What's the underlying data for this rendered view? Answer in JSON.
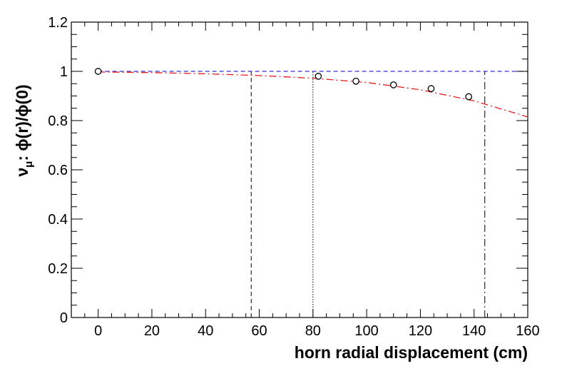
{
  "chart_data": {
    "type": "scatter",
    "xlabel": "horn radial displacement (cm)",
    "ylabel": "ν_μ: ϕ(r)/ϕ(0)",
    "ylabel_parts": {
      "nu": "ν",
      "mu": "μ",
      "ratio": ": ϕ(r)/ϕ(0)"
    },
    "xlim": [
      -10,
      160
    ],
    "ylim": [
      0,
      1.2
    ],
    "xticks": [
      "0",
      "20",
      "40",
      "60",
      "80",
      "100",
      "120",
      "140",
      "160"
    ],
    "yticks": [
      "0",
      "0.2",
      "0.4",
      "0.6",
      "0.8",
      "1",
      "1.2"
    ],
    "grid": false,
    "series": [
      {
        "kind": "markers",
        "marker": "open-circle",
        "x": [
          0,
          82,
          96,
          110,
          124,
          138
        ],
        "y": [
          1.0,
          0.98,
          0.96,
          0.945,
          0.93,
          0.897
        ]
      },
      {
        "kind": "reference-line",
        "style": "dashed",
        "color": "#3333cc",
        "y": 1.0
      },
      {
        "kind": "fit-curve",
        "style": "dash-dot",
        "color": "#e02020",
        "x": [
          0,
          20,
          40,
          60,
          80,
          100,
          120,
          140,
          160
        ],
        "y": [
          0.9975,
          0.995,
          0.99,
          0.983,
          0.972,
          0.955,
          0.925,
          0.88,
          0.815
        ]
      }
    ],
    "vertical_lines": [
      {
        "x": 57,
        "style": "dashed"
      },
      {
        "x": 80,
        "style": "dotted"
      },
      {
        "x": 144,
        "style": "dash-dot"
      }
    ]
  }
}
